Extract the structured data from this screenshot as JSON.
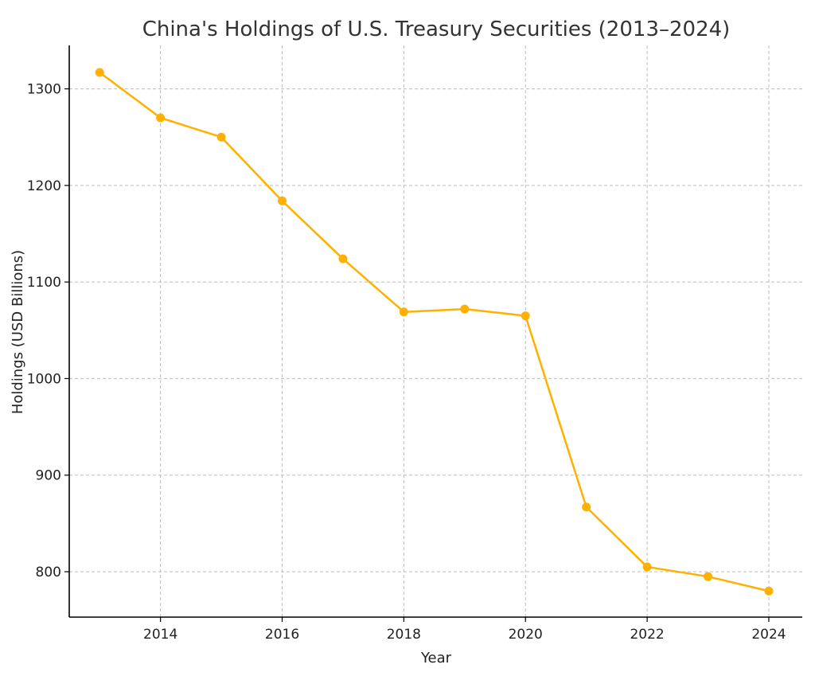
{
  "chart_data": {
    "type": "line",
    "title": "China's Holdings of U.S. Treasury Securities (2013–2024)",
    "xlabel": "Year",
    "ylabel": "Holdings (USD Billions)",
    "xlim": [
      2012.5,
      2024.55
    ],
    "ylim": [
      753,
      1345
    ],
    "x_ticks": [
      2014,
      2016,
      2018,
      2020,
      2022,
      2024
    ],
    "y_ticks": [
      800,
      900,
      1000,
      1100,
      1200,
      1300
    ],
    "grid": true,
    "series": [
      {
        "color": "#FFB000",
        "x": [
          2013,
          2014,
          2015,
          2016,
          2017,
          2018,
          2019,
          2020,
          2021,
          2022,
          2023,
          2024
        ],
        "values": [
          1317,
          1270,
          1250,
          1184,
          1124,
          1069,
          1072,
          1065,
          867,
          805,
          795,
          780
        ]
      }
    ]
  }
}
